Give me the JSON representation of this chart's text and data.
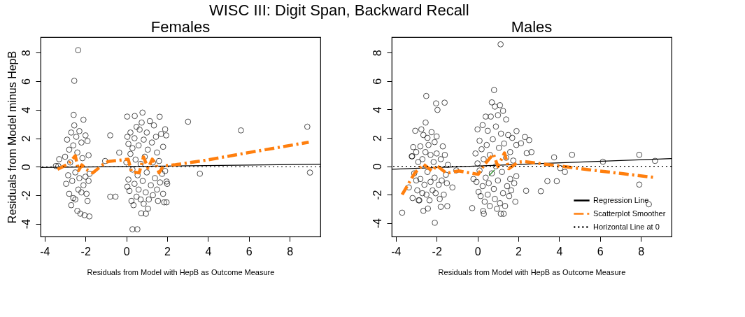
{
  "chart_data": [
    {
      "type": "scatter",
      "title": "Females",
      "xlabel": "Residuals from Model with HepB as Outcome Measure",
      "ylabel": "Residuals from Model minus HepB",
      "annotations": [
        "WISC III: Digit Span, Backward Recall"
      ],
      "xlim": [
        -4.2,
        9.5
      ],
      "ylim": [
        -4.9,
        9.1
      ],
      "xticks": [
        -4,
        -2,
        0,
        2,
        4,
        6,
        8
      ],
      "yticks": [
        -4,
        -2,
        0,
        2,
        4,
        6,
        8
      ],
      "legend": false,
      "ref_lines": [
        {
          "axis": "y",
          "value": 0,
          "color": "#000000",
          "line_style": "dotted"
        }
      ],
      "series": [
        {
          "type": "scatter",
          "color": "#000000",
          "marker": "circle",
          "x": [
            -2.36,
            -2.55,
            -2.58,
            3.02,
            5.61,
            8.86,
            3.6,
            8.99,
            -0.79,
            -0.35,
            -1.04,
            -0.79,
            -0.53,
            -3.29,
            -3.45,
            -3.33,
            0.3,
            0.54,
            0.04,
            0.41,
            0.79,
            1.63,
            -1.81,
            0.73,
            0.96,
            1.06,
            1.97,
            1.97,
            1.9,
            -3.0,
            -2.95,
            -2.9,
            -2.85,
            -2.8,
            -2.8,
            -2.75,
            -2.7,
            -2.7,
            -2.65,
            -2.6,
            -2.6,
            -2.55,
            -2.5,
            -2.5,
            -2.45,
            -2.4,
            -2.4,
            -2.35,
            -2.3,
            -2.3,
            -2.25,
            -2.2,
            -2.2,
            -2.15,
            -2.1,
            -2.1,
            -2.05,
            -2.0,
            -2.0,
            -1.95,
            -1.9,
            -1.9,
            -1.85,
            -1.85,
            -1.8,
            0.0,
            0.05,
            0.05,
            0.1,
            0.1,
            0.15,
            0.2,
            0.2,
            0.25,
            0.3,
            0.3,
            0.35,
            0.4,
            0.4,
            0.45,
            0.5,
            0.5,
            0.55,
            0.6,
            0.6,
            0.65,
            0.7,
            0.7,
            0.75,
            0.8,
            0.85,
            0.85,
            0.9,
            0.95,
            1.0,
            1.0,
            1.05,
            1.1,
            1.15,
            1.2,
            1.25,
            1.3,
            1.3,
            1.35,
            1.4,
            1.45,
            1.5,
            1.5,
            1.55,
            1.6,
            1.65,
            1.7,
            1.75,
            1.8,
            1.8,
            1.85,
            1.9,
            1.95,
            2.0
          ],
          "values": [
            8.18,
            6.03,
            3.64,
            3.16,
            2.55,
            2.81,
            -0.49,
            -0.41,
            2.2,
            0.99,
            0.4,
            -2.1,
            -2.1,
            0.53,
            0.05,
            0.05,
            -4.39,
            -4.39,
            3.52,
            3.56,
            3.8,
            3.51,
            -3.49,
            -3.27,
            -3.3,
            -2.95,
            -1.04,
            -2.5,
            2.63,
            0.7,
            -1.2,
            1.9,
            -0.6,
            1.2,
            -1.9,
            0.3,
            -2.7,
            2.4,
            -1.0,
            1.5,
            -2.2,
            2.9,
            -0.4,
            -2.3,
            2.1,
            -3.1,
            1.0,
            -1.6,
            2.5,
            -0.8,
            -3.3,
            1.7,
            -1.8,
            0.6,
            3.3,
            -1.3,
            -3.4,
            2.2,
            -0.7,
            -1.9,
            1.8,
            -2.4,
            0.8,
            -1.0,
            -0.5,
            0.3,
            2.1,
            -1.4,
            1.6,
            -0.9,
            -1.7,
            2.4,
            0.9,
            -2.4,
            -0.2,
            1.3,
            -2.7,
            2.0,
            -1.2,
            0.5,
            2.8,
            -2.1,
            -0.6,
            1.5,
            -1.6,
            2.6,
            0.2,
            -2.3,
            3.1,
            -1.0,
            1.9,
            -2.6,
            0.7,
            -1.8,
            2.4,
            -0.4,
            1.2,
            -2.3,
            3.2,
            -1.3,
            1.7,
            0.3,
            -2.0,
            2.9,
            -0.8,
            2.1,
            -1.6,
            1.0,
            -2.4,
            0.4,
            -1.1,
            2.3,
            -0.5,
            1.4,
            -1.9,
            -2.5,
            -0.3,
            2.2,
            -1.2
          ]
        },
        {
          "type": "line",
          "color": "#000000",
          "line_style": "solid",
          "x": [
            -4.2,
            9.5
          ],
          "values": [
            -0.06,
            0.18
          ]
        },
        {
          "type": "line",
          "color": "#ff7f0e",
          "line_style": "dashed",
          "x": [
            -3.37,
            -2.83,
            -2.5,
            -2.34,
            -2.18,
            -1.96,
            -1.64,
            -1.1,
            -0.88,
            -0.35,
            0.09,
            0.25,
            0.63,
            0.84,
            1.06,
            1.27,
            1.43,
            1.6,
            1.81,
            2.35,
            3.86,
            6.02,
            8.93
          ],
          "values": [
            -0.19,
            0.21,
            0.77,
            -0.27,
            0.13,
            -0.19,
            -0.43,
            0.21,
            0.37,
            0.45,
            0.53,
            -0.35,
            -0.43,
            0.69,
            -0.11,
            0.53,
            0.21,
            -0.43,
            0.05,
            0.13,
            0.45,
            1.0,
            1.72
          ]
        }
      ]
    },
    {
      "type": "scatter",
      "title": "Males",
      "xlabel": "Residuals from Model with HepB as Outcome Measure",
      "xlim": [
        -4.2,
        9.5
      ],
      "ylim": [
        -4.95,
        9.1
      ],
      "xticks": [
        -4,
        -2,
        0,
        2,
        4,
        6,
        8
      ],
      "yticks": [
        -4,
        -2,
        0,
        2,
        4,
        6,
        8
      ],
      "legend": "bottom right",
      "ref_lines": [
        {
          "axis": "y",
          "value": 0,
          "label": "Horizontal Line at 0",
          "color": "#000000",
          "line_style": "dotted"
        }
      ],
      "series": [
        {
          "type": "scatter",
          "color": "#000000",
          "marker": "circle",
          "x": [
            1.13,
            0.81,
            -2.51,
            -2.03,
            -1.61,
            -1.96,
            -2.54,
            -3.69,
            -2.09,
            -2.65,
            -2.43,
            -1.8,
            -1.48,
            -1.23,
            -1.04,
            -0.26,
            0.27,
            0.31,
            1.14,
            1.28,
            1.91,
            2.32,
            2.53,
            2.13,
            2.41,
            2.64,
            2.38,
            3.1,
            3.42,
            3.88,
            3.75,
            4.63,
            4.05,
            4.28,
            6.14,
            7.92,
            7.92,
            8.69,
            8.39,
            -3.22,
            -3.36,
            -3.18,
            -2.88,
            -3.2,
            -3.15,
            -3.1,
            -3.05,
            -3.0,
            -3.0,
            -2.95,
            -2.9,
            -2.85,
            -2.8,
            -2.8,
            -2.75,
            -2.7,
            -2.7,
            -2.65,
            -2.6,
            -2.55,
            -2.5,
            -2.45,
            -2.45,
            -2.4,
            -2.35,
            -2.3,
            -2.3,
            -2.25,
            -2.2,
            -2.15,
            -2.1,
            -2.1,
            -2.05,
            -2.0,
            -2.0,
            -1.9,
            -1.85,
            -1.8,
            -1.75,
            -1.7,
            -1.65,
            -1.6,
            -1.55,
            -1.5,
            -1.45,
            -0.2,
            -0.1,
            -0.05,
            0.0,
            0.0,
            0.05,
            0.1,
            0.1,
            0.15,
            0.2,
            0.25,
            0.25,
            0.3,
            0.35,
            0.4,
            0.4,
            0.45,
            0.5,
            0.5,
            0.55,
            0.6,
            0.6,
            0.65,
            0.7,
            0.7,
            0.75,
            0.8,
            0.85,
            0.85,
            0.9,
            0.9,
            0.95,
            1.0,
            1.0,
            1.05,
            1.1,
            1.1,
            1.15,
            1.2,
            1.25,
            1.25,
            1.3,
            1.35,
            1.4,
            1.4,
            1.45,
            1.5,
            1.55,
            1.6,
            1.6,
            1.65,
            1.7,
            1.75,
            1.8,
            1.85,
            1.9,
            1.9
          ],
          "values": [
            8.59,
            5.37,
            4.95,
            4.43,
            4.48,
            3.97,
            3.08,
            -3.27,
            -3.98,
            -3.14,
            -2.98,
            -2.86,
            -2.81,
            -1.49,
            -0.29,
            -2.95,
            -3.16,
            -3.35,
            -3.35,
            -3.35,
            2.48,
            2.06,
            1.84,
            1.62,
            0.92,
            1.0,
            -1.73,
            -1.76,
            -1.05,
            -1.05,
            0.63,
            0.81,
            -0.13,
            -0.4,
            0.32,
            0.81,
            -1.29,
            0.38,
            -2.68,
            0.7,
            -1.49,
            -2.24,
            -2.4,
            0.7,
            1.35,
            -0.5,
            2.5,
            -1.0,
            1.0,
            -1.7,
            0.3,
            -2.4,
            1.4,
            -0.9,
            2.6,
            -1.9,
            0.5,
            2.2,
            -1.3,
            1.0,
            -2.0,
            2.0,
            -0.4,
            1.5,
            -2.4,
            0.8,
            -1.1,
            2.4,
            -1.7,
            0.3,
            1.7,
            -0.8,
            -1.9,
            2.1,
            0.9,
            -1.3,
            -2.3,
            0.5,
            -1.0,
            1.4,
            -2.0,
            0.8,
            -0.6,
            -1.2,
            0.1,
            -0.9,
            0.9,
            -1.1,
            2.6,
            0.2,
            -1.8,
            1.8,
            -0.3,
            -2.1,
            1.2,
            2.9,
            -1.4,
            0.5,
            -2.5,
            3.5,
            -0.8,
            1.5,
            -2.0,
            2.5,
            -1.2,
            0.8,
            -2.8,
            3.5,
            -0.5,
            4.5,
            1.9,
            -1.6,
            4.2,
            -2.3,
            2.8,
            0.0,
            -3.0,
            3.6,
            -1.0,
            1.3,
            -2.6,
            4.3,
            2.3,
            -0.4,
            3.9,
            -1.9,
            1.6,
            -2.8,
            3.3,
            0.6,
            -1.4,
            2.2,
            -2.1,
            1.0,
            -0.9,
            -1.7,
            2.0,
            0.4,
            -1.2,
            -2.5,
            -0.7,
            1.5
          ]
        },
        {
          "type": "line",
          "name": "Regression Line",
          "color": "#000000",
          "line_style": "solid",
          "x": [
            -4.2,
            9.5
          ],
          "values": [
            -0.21,
            0.54
          ]
        },
        {
          "type": "line",
          "name": "Scatterplot Smoother",
          "color": "#ff7f0e",
          "line_style": "dashed",
          "x": [
            -3.69,
            -3.08,
            -2.65,
            -2.22,
            -2.0,
            -1.52,
            -0.93,
            0.03,
            0.35,
            0.78,
            1.0,
            1.32,
            1.53,
            2.01,
            2.28,
            3.35,
            5.5,
            8.61
          ],
          "values": [
            -2.0,
            -0.49,
            0.14,
            -0.33,
            0.06,
            -0.49,
            -0.33,
            -0.57,
            0.14,
            0.86,
            -0.02,
            0.94,
            -0.17,
            0.3,
            0.33,
            0.14,
            -0.25,
            -0.78
          ]
        },
        {
          "type": "line",
          "color": "#1a8a1a",
          "line_style": "solid",
          "x": [
            0.57,
            0.84
          ],
          "values": [
            -0.65,
            -0.25
          ]
        }
      ]
    }
  ]
}
